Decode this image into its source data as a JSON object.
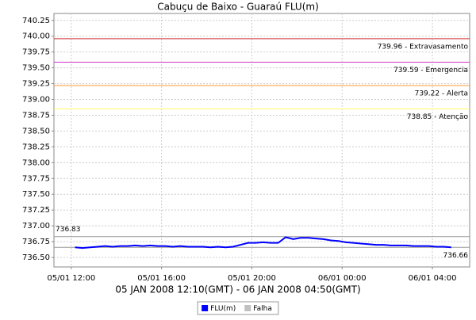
{
  "chart_data": {
    "type": "line",
    "title": "Cabuçu de Baixo - Guaraú FLU(m)",
    "x_label": "05 JAN 2008 12:10(GMT) - 06 JAN 2008 04:50(GMT)",
    "x": [
      "05/01 12:10",
      "05/01 12:30",
      "05/01 12:50",
      "05/01 13:10",
      "05/01 13:30",
      "05/01 13:50",
      "05/01 14:10",
      "05/01 14:30",
      "05/01 14:50",
      "05/01 15:10",
      "05/01 15:30",
      "05/01 15:50",
      "05/01 16:10",
      "05/01 16:30",
      "05/01 16:50",
      "05/01 17:10",
      "05/01 17:30",
      "05/01 17:50",
      "05/01 18:10",
      "05/01 18:30",
      "05/01 18:50",
      "05/01 19:10",
      "05/01 19:30",
      "05/01 19:50",
      "05/01 20:10",
      "05/01 20:30",
      "05/01 20:50",
      "05/01 21:10",
      "05/01 21:30",
      "05/01 21:50",
      "05/01 22:10",
      "05/01 22:30",
      "05/01 22:50",
      "05/01 23:10",
      "05/01 23:30",
      "05/01 23:50",
      "06/01 00:10",
      "06/01 00:30",
      "06/01 00:50",
      "06/01 01:10",
      "06/01 01:30",
      "06/01 01:50",
      "06/01 02:10",
      "06/01 02:30",
      "06/01 02:50",
      "06/01 03:10",
      "06/01 03:30",
      "06/01 03:50",
      "06/01 04:10",
      "06/01 04:30",
      "06/01 04:50"
    ],
    "series": [
      {
        "name": "FLU(m)",
        "color": "#0000ff",
        "values": [
          736.66,
          736.65,
          736.66,
          736.67,
          736.68,
          736.67,
          736.68,
          736.68,
          736.69,
          736.68,
          736.69,
          736.68,
          736.68,
          736.67,
          736.68,
          736.67,
          736.67,
          736.67,
          736.66,
          736.67,
          736.66,
          736.67,
          736.7,
          736.73,
          736.73,
          736.74,
          736.73,
          736.73,
          736.82,
          736.79,
          736.81,
          736.81,
          736.8,
          736.79,
          736.77,
          736.76,
          736.74,
          736.73,
          736.72,
          736.71,
          736.7,
          736.7,
          736.69,
          736.69,
          736.69,
          736.68,
          736.68,
          736.68,
          736.67,
          736.67,
          736.66
        ]
      },
      {
        "name": "Falha",
        "color": "#c0c0c0",
        "values": [
          null,
          null,
          null,
          null,
          null,
          null,
          null,
          null,
          null,
          null,
          null,
          null,
          null,
          null,
          null,
          null,
          null,
          null,
          null,
          null,
          null,
          null,
          null,
          null,
          null,
          null,
          null,
          null,
          null,
          null,
          null,
          null,
          null,
          null,
          null,
          null,
          null,
          null,
          null,
          null,
          null,
          null,
          null,
          null,
          null,
          null,
          null,
          null,
          null,
          null,
          null
        ]
      }
    ],
    "reference_lines": [
      {
        "value": 739.96,
        "label": "739.96 - Extravasamento",
        "color": "#cc3333",
        "side": "right"
      },
      {
        "value": 739.59,
        "label": "739.59 - Emergencia",
        "color": "#cc33cc",
        "side": "right"
      },
      {
        "value": 739.22,
        "label": "739.22 - Alerta",
        "color": "#ff9933",
        "side": "right"
      },
      {
        "value": 738.85,
        "label": "738.85 - Atenção",
        "color": "#ffff66",
        "side": "right"
      },
      {
        "value": 736.83,
        "label": "736.83",
        "color": "#999999",
        "side": "left"
      },
      {
        "value": 736.66,
        "label": "736.66",
        "color": "#999999",
        "side": "right"
      }
    ],
    "xlim": [
      "05/01 11:14",
      "06/01 05:39"
    ],
    "xticks": [
      "05/01 12:00",
      "05/01 16:00",
      "05/01 20:00",
      "06/01 00:00",
      "06/01 04:00"
    ],
    "ylim": [
      736.35,
      740.36
    ],
    "yticks": [
      {
        "value": 736.5,
        "label": "736.50"
      },
      736.75,
      {
        "value": 737,
        "label": "737.00"
      },
      737.25,
      {
        "value": 737.5,
        "label": "737.50"
      },
      737.75,
      {
        "value": 738,
        "label": "738.00"
      },
      738.25,
      {
        "value": 738.5,
        "label": "738.50"
      },
      738.75,
      {
        "value": 739,
        "label": "739.00"
      },
      739.25,
      {
        "value": 739.5,
        "label": "739.50"
      },
      739.75,
      {
        "value": 740,
        "label": "740.00"
      },
      740.25
    ],
    "grid": true
  }
}
